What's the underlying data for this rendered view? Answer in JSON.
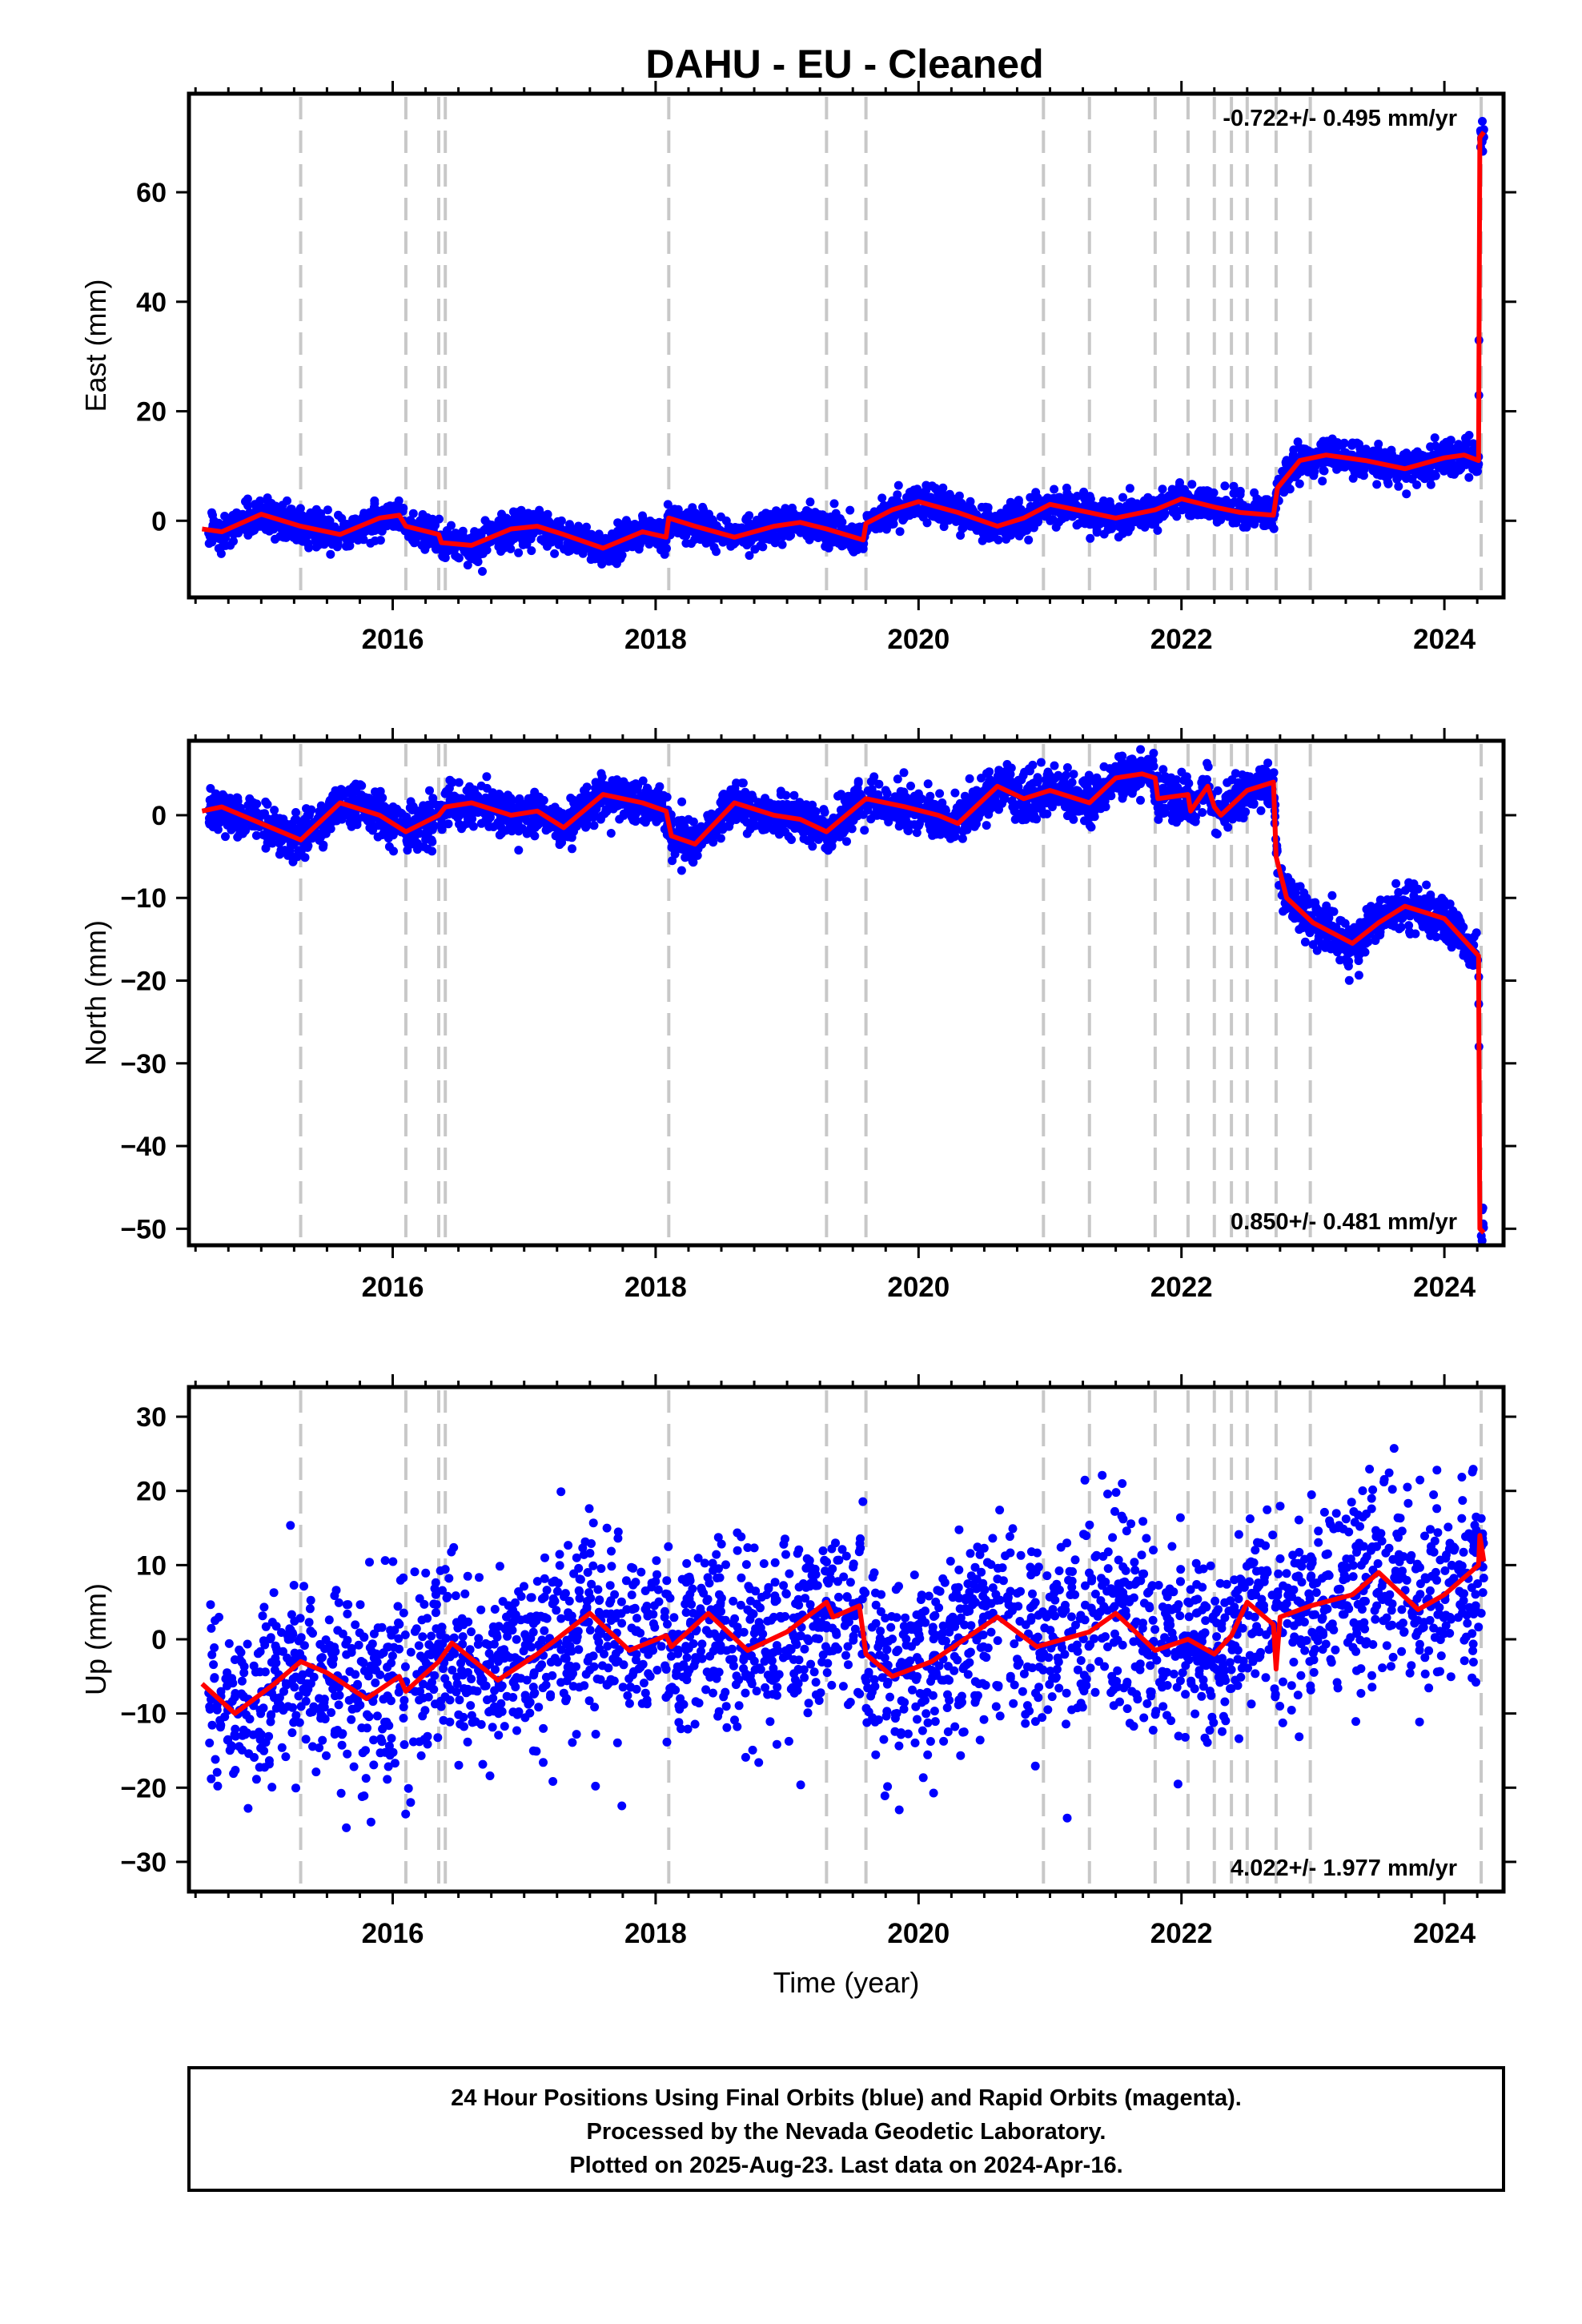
{
  "title": "DAHU  - EU - Cleaned",
  "colors": {
    "final_orbit": "#0000ff",
    "model": "#ff0000",
    "event_line": "#c8c8c8",
    "frame": "#000000"
  },
  "chart_data": [
    {
      "type": "scatter",
      "component": "east",
      "ylabel": "East (mm)",
      "xlabel": "",
      "xlim": [
        2014.45,
        2024.45
      ],
      "ylim": [
        -14,
        78
      ],
      "yticks": [
        0,
        20,
        40,
        60
      ],
      "xticks": [
        2016,
        2018,
        2020,
        2022,
        2024
      ],
      "rate_label": "-0.722+/- 0.495 mm/yr",
      "rate_position": "top-right",
      "event_lines": [
        2015.3,
        2016.1,
        2016.35,
        2016.4,
        2018.1,
        2019.3,
        2019.6,
        2020.95,
        2021.3,
        2021.8,
        2022.05,
        2022.25,
        2022.38,
        2022.5,
        2022.72,
        2022.98,
        2024.28
      ],
      "noise_sd": 1.5,
      "model": [
        [
          2014.55,
          -1.5
        ],
        [
          2014.7,
          -2.0
        ],
        [
          2015.0,
          1.2
        ],
        [
          2015.3,
          -1.0
        ],
        [
          2015.6,
          -2.5
        ],
        [
          2015.9,
          0.5
        ],
        [
          2016.05,
          1.0
        ],
        [
          2016.1,
          -1.0
        ],
        [
          2016.35,
          -2.5
        ],
        [
          2016.37,
          -4.0
        ],
        [
          2016.6,
          -4.5
        ],
        [
          2016.9,
          -1.5
        ],
        [
          2017.1,
          -1.0
        ],
        [
          2017.3,
          -2.5
        ],
        [
          2017.6,
          -5.0
        ],
        [
          2017.9,
          -2.0
        ],
        [
          2018.08,
          -3.0
        ],
        [
          2018.1,
          0.5
        ],
        [
          2018.3,
          -1.0
        ],
        [
          2018.6,
          -3.0
        ],
        [
          2018.9,
          -1.0
        ],
        [
          2019.1,
          -0.3
        ],
        [
          2019.3,
          -1.5
        ],
        [
          2019.58,
          -3.5
        ],
        [
          2019.6,
          -0.5
        ],
        [
          2019.8,
          2.0
        ],
        [
          2020.0,
          3.5
        ],
        [
          2020.3,
          1.5
        ],
        [
          2020.6,
          -1.0
        ],
        [
          2020.8,
          0.5
        ],
        [
          2021.0,
          3.0
        ],
        [
          2021.2,
          2.0
        ],
        [
          2021.5,
          0.5
        ],
        [
          2021.8,
          2.0
        ],
        [
          2022.0,
          4.0
        ],
        [
          2022.25,
          2.5
        ],
        [
          2022.45,
          1.5
        ],
        [
          2022.7,
          1.0
        ],
        [
          2022.73,
          6.0
        ],
        [
          2022.9,
          11.0
        ],
        [
          2023.1,
          12.0
        ],
        [
          2023.4,
          11.0
        ],
        [
          2023.7,
          9.5
        ],
        [
          2024.0,
          11.5
        ],
        [
          2024.15,
          12.0
        ],
        [
          2024.26,
          11.0
        ],
        [
          2024.27,
          70.0
        ],
        [
          2024.3,
          71.0
        ]
      ]
    },
    {
      "type": "scatter",
      "component": "north",
      "ylabel": "North (mm)",
      "xlabel": "",
      "xlim": [
        2014.45,
        2024.45
      ],
      "ylim": [
        -52,
        9
      ],
      "yticks": [
        0,
        -10,
        -20,
        -30,
        -40,
        -50
      ],
      "xticks": [
        2016,
        2018,
        2020,
        2022,
        2024
      ],
      "rate_label": "0.850+/- 0.481 mm/yr",
      "rate_position": "bottom-right",
      "event_lines": [
        2015.3,
        2016.1,
        2016.35,
        2016.4,
        2018.1,
        2019.3,
        2019.6,
        2020.95,
        2021.3,
        2021.8,
        2022.05,
        2022.25,
        2022.38,
        2022.5,
        2022.72,
        2022.98,
        2024.28
      ],
      "noise_sd": 1.3,
      "model": [
        [
          2014.55,
          0.5
        ],
        [
          2014.7,
          1.0
        ],
        [
          2015.0,
          -1.0
        ],
        [
          2015.3,
          -3.0
        ],
        [
          2015.6,
          1.5
        ],
        [
          2015.9,
          0.0
        ],
        [
          2016.1,
          -2.0
        ],
        [
          2016.35,
          0.0
        ],
        [
          2016.4,
          1.0
        ],
        [
          2016.6,
          1.5
        ],
        [
          2016.9,
          0.0
        ],
        [
          2017.1,
          0.5
        ],
        [
          2017.3,
          -1.5
        ],
        [
          2017.6,
          2.5
        ],
        [
          2017.9,
          1.5
        ],
        [
          2018.08,
          0.5
        ],
        [
          2018.12,
          -2.5
        ],
        [
          2018.3,
          -3.5
        ],
        [
          2018.6,
          1.5
        ],
        [
          2018.9,
          0.0
        ],
        [
          2019.1,
          -0.5
        ],
        [
          2019.3,
          -2.0
        ],
        [
          2019.6,
          2.0
        ],
        [
          2019.9,
          1.0
        ],
        [
          2020.15,
          0.0
        ],
        [
          2020.3,
          -1.0
        ],
        [
          2020.6,
          3.5
        ],
        [
          2020.8,
          2.0
        ],
        [
          2021.0,
          3.0
        ],
        [
          2021.3,
          1.5
        ],
        [
          2021.5,
          4.5
        ],
        [
          2021.7,
          5.0
        ],
        [
          2021.8,
          4.5
        ],
        [
          2021.82,
          2.0
        ],
        [
          2022.05,
          2.5
        ],
        [
          2022.07,
          0.5
        ],
        [
          2022.2,
          3.5
        ],
        [
          2022.25,
          1.0
        ],
        [
          2022.3,
          0.0
        ],
        [
          2022.5,
          3.0
        ],
        [
          2022.7,
          4.0
        ],
        [
          2022.72,
          -5.0
        ],
        [
          2022.8,
          -10.0
        ],
        [
          2023.0,
          -13.0
        ],
        [
          2023.3,
          -15.5
        ],
        [
          2023.5,
          -13.0
        ],
        [
          2023.7,
          -11.0
        ],
        [
          2024.0,
          -12.5
        ],
        [
          2024.26,
          -17.0
        ],
        [
          2024.27,
          -50.0
        ],
        [
          2024.3,
          -50.5
        ]
      ]
    },
    {
      "type": "scatter",
      "component": "up",
      "ylabel": "Up (mm)",
      "xlabel": "Time (year)",
      "xlim": [
        2014.45,
        2024.45
      ],
      "ylim": [
        -34,
        34
      ],
      "yticks": [
        30,
        20,
        10,
        0,
        -10,
        -20,
        -30
      ],
      "xticks": [
        2016,
        2018,
        2020,
        2022,
        2024
      ],
      "rate_label": "4.022+/- 1.977 mm/yr",
      "rate_position": "bottom-right",
      "event_lines": [
        2015.3,
        2016.1,
        2016.35,
        2016.4,
        2018.1,
        2019.3,
        2019.6,
        2020.95,
        2021.3,
        2021.8,
        2022.05,
        2022.25,
        2022.38,
        2022.5,
        2022.72,
        2022.98,
        2024.28
      ],
      "noise_sd": 6.5,
      "model": [
        [
          2014.55,
          -6.0
        ],
        [
          2014.8,
          -10.0
        ],
        [
          2015.1,
          -6.0
        ],
        [
          2015.3,
          -3.0
        ],
        [
          2015.5,
          -4.5
        ],
        [
          2015.8,
          -8.0
        ],
        [
          2016.05,
          -5.0
        ],
        [
          2016.1,
          -7.0
        ],
        [
          2016.35,
          -3.0
        ],
        [
          2016.45,
          -0.5
        ],
        [
          2016.8,
          -5.5
        ],
        [
          2017.1,
          -2.0
        ],
        [
          2017.5,
          3.5
        ],
        [
          2017.8,
          -1.5
        ],
        [
          2018.08,
          0.5
        ],
        [
          2018.12,
          -1.0
        ],
        [
          2018.4,
          3.5
        ],
        [
          2018.7,
          -1.5
        ],
        [
          2019.0,
          1.0
        ],
        [
          2019.3,
          5.0
        ],
        [
          2019.35,
          3.0
        ],
        [
          2019.55,
          4.5
        ],
        [
          2019.6,
          -2.0
        ],
        [
          2019.8,
          -5.0
        ],
        [
          2020.1,
          -3.0
        ],
        [
          2020.6,
          3.0
        ],
        [
          2020.9,
          -1.0
        ],
        [
          2021.3,
          1.0
        ],
        [
          2021.5,
          3.5
        ],
        [
          2021.8,
          -1.5
        ],
        [
          2022.05,
          0.0
        ],
        [
          2022.25,
          -2.0
        ],
        [
          2022.38,
          0.5
        ],
        [
          2022.5,
          5.0
        ],
        [
          2022.7,
          2.0
        ],
        [
          2022.72,
          -4.0
        ],
        [
          2022.75,
          3.0
        ],
        [
          2022.98,
          4.5
        ],
        [
          2023.3,
          6.0
        ],
        [
          2023.5,
          9.0
        ],
        [
          2023.8,
          4.0
        ],
        [
          2024.0,
          6.0
        ],
        [
          2024.26,
          10.0
        ],
        [
          2024.27,
          14.0
        ],
        [
          2024.3,
          10.5
        ]
      ]
    }
  ],
  "footer": {
    "line1": "24 Hour Positions Using Final Orbits (blue) and Rapid Orbits (magenta).",
    "line2": "Processed by the Nevada Geodetic Laboratory.",
    "line3": "Plotted on 2025-Aug-23. Last data on 2024-Apr-16."
  }
}
